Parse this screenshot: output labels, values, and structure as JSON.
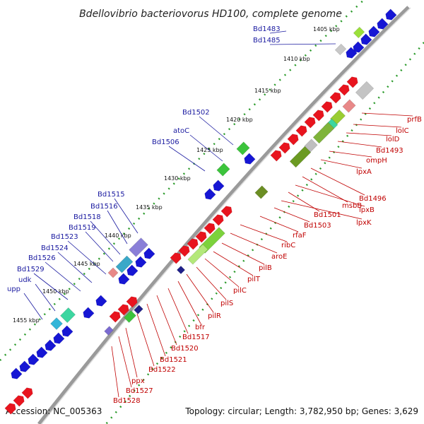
{
  "title": "Bdellovibrio bacteriovorus HD100, complete genome",
  "footer": {
    "accession": "Accession: NC_005363",
    "topology": "Topology: circular; Length: 3,782,950 bp; Genes: 3,629"
  },
  "colors": {
    "forward_gene": "#e8141e",
    "reverse_gene": "#1616d4",
    "backbone": "#999999",
    "tick": "#2a9a2a",
    "left_label": "#1a1aa0",
    "right_label": "#c00000"
  },
  "ruler_labels": [
    "1405 kbp",
    "1410 kbp",
    "1415 kbp",
    "1420 kbp",
    "1425 kbp",
    "1430 kbp",
    "1435 kbp",
    "1440 kbp",
    "1445 kbp",
    "1450 kbp",
    "1455 kbp"
  ],
  "left_labels": [
    "Bd1483",
    "Bd1485",
    "Bd1502",
    "atoC",
    "Bd1506",
    "Bd1515",
    "Bd1516",
    "Bd1518",
    "Bd1519",
    "Bd1523",
    "Bd1524",
    "Bd1526",
    "Bd1529",
    "udk",
    "upp"
  ],
  "right_labels": [
    "prfB",
    "lolC",
    "lolD",
    "Bd1493",
    "ompH",
    "lpxA",
    "Bd1496",
    "msbB",
    "lpxB",
    "Bd1501",
    "lpxK",
    "Bd1503",
    "rfaF",
    "ribC",
    "aroE",
    "pilB",
    "pilT",
    "pilC",
    "pilS",
    "pilR",
    "bfr",
    "Bd1517",
    "Bd1520",
    "Bd1521",
    "Bd1522",
    "ppx",
    "Bd1527",
    "Bd1528"
  ]
}
